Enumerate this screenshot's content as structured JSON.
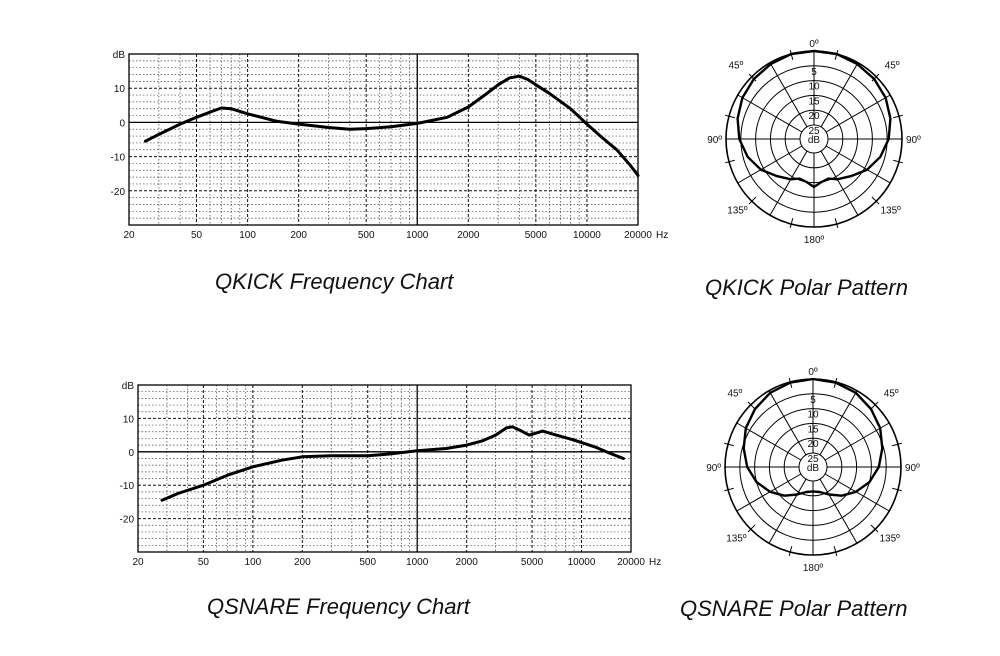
{
  "chart_data": [
    {
      "id": "qkick-frequency",
      "type": "line",
      "title": "QKICK Frequency Chart",
      "ylabel": "dB",
      "xunit": "Hz",
      "xscale": "log",
      "xlim": [
        20,
        20000
      ],
      "ylim": [
        -30,
        20
      ],
      "grid": true,
      "xticks": [
        20,
        50,
        100,
        200,
        500,
        1000,
        2000,
        5000,
        10000,
        20000
      ],
      "xtick_labels": [
        "20",
        "50",
        "100",
        "200",
        "500",
        "1000",
        "2000",
        "5000",
        "10000",
        "20000"
      ],
      "yticks": [
        10,
        0,
        -10,
        -20
      ],
      "ytick_labels": [
        "10",
        "0",
        "-10",
        "-20"
      ],
      "series": [
        {
          "x": [
            25,
            30,
            40,
            50,
            60,
            70,
            80,
            100,
            150,
            200,
            300,
            400,
            500,
            700,
            1000,
            1500,
            2000,
            2500,
            3000,
            3500,
            4000,
            4500,
            5000,
            6000,
            8000,
            10000,
            12000,
            15000,
            18000,
            20000
          ],
          "y": [
            -5.5,
            -3.5,
            -0.5,
            1.5,
            3,
            4.2,
            4,
            2.5,
            0.3,
            -0.5,
            -1.5,
            -2,
            -1.8,
            -1.3,
            -0.3,
            1.5,
            4.5,
            8,
            11,
            13,
            13.5,
            12.5,
            11,
            8.5,
            4,
            -0.5,
            -4,
            -8,
            -12.5,
            -15.5
          ]
        }
      ]
    },
    {
      "id": "qsnare-frequency",
      "type": "line",
      "title": "QSNARE Frequency Chart",
      "ylabel": "dB",
      "xunit": "Hz",
      "xscale": "log",
      "xlim": [
        20,
        20000
      ],
      "ylim": [
        -30,
        20
      ],
      "grid": true,
      "xticks": [
        20,
        50,
        100,
        200,
        500,
        1000,
        2000,
        5000,
        10000,
        20000
      ],
      "xtick_labels": [
        "20",
        "50",
        "100",
        "200",
        "500",
        "1000",
        "2000",
        "5000",
        "10000",
        "20000"
      ],
      "yticks": [
        10,
        0,
        -10,
        -20
      ],
      "ytick_labels": [
        "10",
        "0",
        "-10",
        "-20"
      ],
      "series": [
        {
          "x": [
            28,
            35,
            50,
            70,
            100,
            150,
            200,
            300,
            500,
            700,
            1000,
            1500,
            2000,
            2500,
            3000,
            3500,
            3800,
            4200,
            4800,
            5200,
            5800,
            7000,
            9000,
            12000,
            15000,
            18000
          ],
          "y": [
            -14.5,
            -12.5,
            -10,
            -7,
            -4.5,
            -2.5,
            -1.5,
            -1.2,
            -1.2,
            -0.6,
            0.3,
            1,
            2,
            3.3,
            5,
            7.2,
            7.5,
            6.5,
            5,
            5.5,
            6.2,
            5,
            3.5,
            1.5,
            -0.5,
            -2
          ]
        }
      ]
    },
    {
      "id": "qkick-polar",
      "type": "polar",
      "title": "QKICK Polar Pattern",
      "rlabel": "dB",
      "ring_labels": [
        "5",
        "10",
        "15",
        "20",
        "25"
      ],
      "angle_labels": {
        "top": "0º",
        "upper_left": "45º",
        "upper_right": "45º",
        "left": "90º",
        "right": "90º",
        "lower_left": "135º",
        "lower_right": "135º",
        "bottom": "180º"
      },
      "series": [
        {
          "theta": [
            0,
            15,
            30,
            45,
            60,
            75,
            90,
            105,
            120,
            135,
            150,
            160,
            170,
            180,
            190,
            200,
            210,
            225,
            240,
            255,
            270,
            285,
            300,
            315,
            330,
            345,
            360
          ],
          "attenuation_db": [
            0,
            0,
            0.5,
            1,
            1.8,
            3,
            4.5,
            6.5,
            9,
            12,
            14,
            15.5,
            15,
            13.5,
            15,
            15.5,
            14,
            12,
            9,
            6.5,
            4.5,
            3,
            1.8,
            1,
            0.5,
            0,
            0
          ]
        }
      ]
    },
    {
      "id": "qsnare-polar",
      "type": "polar",
      "title": "QSNARE Polar Pattern",
      "rlabel": "dB",
      "ring_labels": [
        "5",
        "10",
        "15",
        "20",
        "25"
      ],
      "angle_labels": {
        "top": "0º",
        "upper_left": "45º",
        "upper_right": "45º",
        "left": "90º",
        "right": "90º",
        "lower_left": "135º",
        "lower_right": "135º",
        "bottom": "180º"
      },
      "series": [
        {
          "theta": [
            0,
            15,
            30,
            45,
            60,
            75,
            90,
            105,
            120,
            135,
            150,
            165,
            180,
            195,
            210,
            225,
            240,
            255,
            270,
            285,
            300,
            315,
            330,
            345,
            360
          ],
          "attenuation_db": [
            0,
            0.2,
            0.8,
            2,
            3.5,
            5.5,
            7.5,
            10,
            13,
            16,
            19,
            21,
            21.5,
            21,
            19,
            16,
            13,
            10,
            7.5,
            5.5,
            3.5,
            2,
            0.8,
            0.2,
            0
          ]
        }
      ]
    }
  ]
}
